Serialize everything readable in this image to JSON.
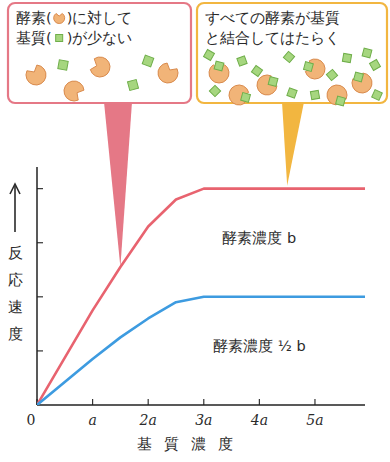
{
  "chart_data": {
    "type": "line",
    "xlabel": "基質濃度",
    "ylabel": "反応速度",
    "x": [
      0,
      1,
      1.5,
      2,
      2.5,
      3,
      4,
      4.5,
      5,
      5.9
    ],
    "series": [
      {
        "name": "酵素濃度 b",
        "color": "#e8636f",
        "values": [
          0,
          1.75,
          2.55,
          3.3,
          3.8,
          4,
          4,
          4,
          4,
          4
        ]
      },
      {
        "name": "酵素濃度 ½ b",
        "color": "#3d9be0",
        "values": [
          0,
          0.85,
          1.25,
          1.6,
          1.9,
          2,
          2,
          2,
          2,
          2
        ]
      }
    ],
    "xlim": [
      0,
      5.9
    ],
    "xticks": [
      0,
      {
        "value": 1,
        "label": "a"
      },
      {
        "value": 2,
        "label": "2a"
      },
      {
        "value": 3,
        "label": "3a"
      },
      {
        "value": 4,
        "label": "4a"
      },
      {
        "value": 5,
        "label": "5a"
      }
    ],
    "ylim": [
      0,
      4.4
    ],
    "yticks": [
      1,
      2,
      3,
      4
    ],
    "tick_labels": "x",
    "annotations": [
      {
        "text": [
          "酵素(　)に対して",
          "基質(　)が少ない"
        ],
        "color": "#e57886"
      },
      {
        "text": [
          "すべての酵素が基質",
          "と結合してはたらく"
        ],
        "color": "#f2b640"
      }
    ]
  }
}
